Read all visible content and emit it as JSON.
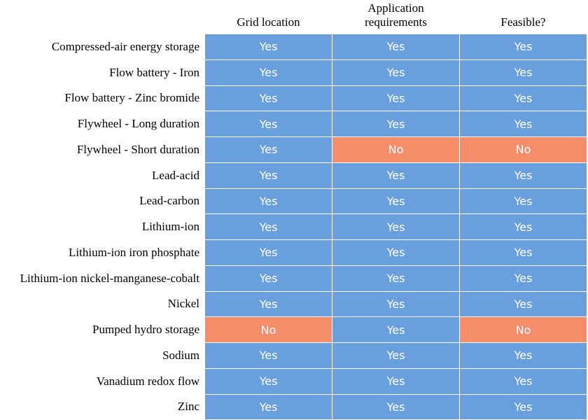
{
  "chart_data": {
    "type": "table",
    "columns": [
      "Grid location",
      "Application\nrequirements",
      "Feasible?"
    ],
    "rows": [
      {
        "label": "Compressed-air energy storage",
        "values": [
          "Yes",
          "Yes",
          "Yes"
        ]
      },
      {
        "label": "Flow battery - Iron",
        "values": [
          "Yes",
          "Yes",
          "Yes"
        ]
      },
      {
        "label": "Flow battery - Zinc bromide",
        "values": [
          "Yes",
          "Yes",
          "Yes"
        ]
      },
      {
        "label": "Flywheel - Long duration",
        "values": [
          "Yes",
          "Yes",
          "Yes"
        ]
      },
      {
        "label": "Flywheel - Short duration",
        "values": [
          "Yes",
          "No",
          "No"
        ]
      },
      {
        "label": "Lead-acid",
        "values": [
          "Yes",
          "Yes",
          "Yes"
        ]
      },
      {
        "label": "Lead-carbon",
        "values": [
          "Yes",
          "Yes",
          "Yes"
        ]
      },
      {
        "label": "Lithium-ion",
        "values": [
          "Yes",
          "Yes",
          "Yes"
        ]
      },
      {
        "label": "Lithium-ion iron phosphate",
        "values": [
          "Yes",
          "Yes",
          "Yes"
        ]
      },
      {
        "label": "Lithium-ion nickel-manganese-cobalt",
        "values": [
          "Yes",
          "Yes",
          "Yes"
        ]
      },
      {
        "label": "Nickel",
        "values": [
          "Yes",
          "Yes",
          "Yes"
        ]
      },
      {
        "label": "Pumped hydro storage",
        "values": [
          "No",
          "Yes",
          "No"
        ]
      },
      {
        "label": "Sodium",
        "values": [
          "Yes",
          "Yes",
          "Yes"
        ]
      },
      {
        "label": "Vanadium redox flow",
        "values": [
          "Yes",
          "Yes",
          "Yes"
        ]
      },
      {
        "label": "Zinc",
        "values": [
          "Yes",
          "Yes",
          "Yes"
        ]
      }
    ],
    "colors": {
      "Yes": "#6a9fde",
      "No": "#f58d6b"
    }
  }
}
